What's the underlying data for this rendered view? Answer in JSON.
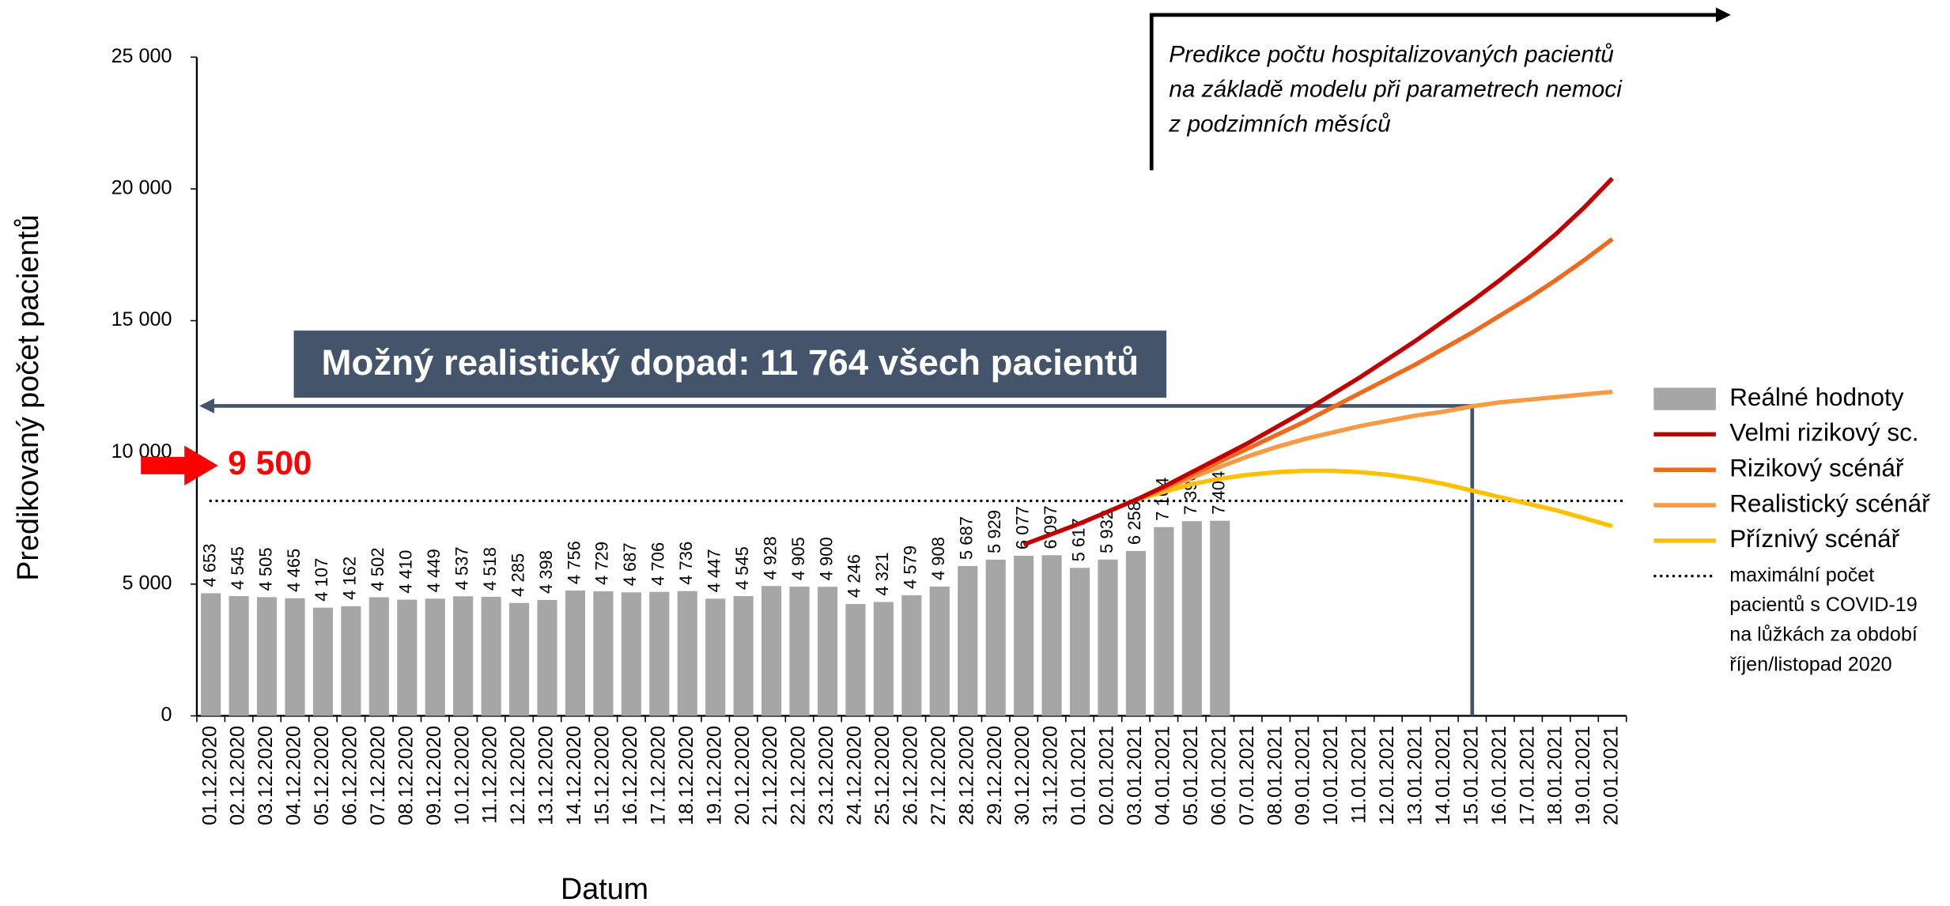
{
  "chart_data": {
    "type": "bar",
    "y_label": "Predikovaný počet pacientů",
    "x_label": "Datum",
    "ylim": [
      0,
      25000
    ],
    "yticks": [
      0,
      {
        "value": 5000,
        "label": "5 000"
      },
      {
        "value": 10000,
        "label": "10 000"
      },
      {
        "value": 15000,
        "label": "15 000"
      },
      {
        "value": 20000,
        "label": "20 000"
      },
      {
        "value": 25000,
        "label": "25 000"
      }
    ],
    "categories": [
      "01.12.2020",
      "02.12.2020",
      "03.12.2020",
      "04.12.2020",
      "05.12.2020",
      "06.12.2020",
      "07.12.2020",
      "08.12.2020",
      "09.12.2020",
      "10.12.2020",
      "11.12.2020",
      "12.12.2020",
      "13.12.2020",
      "14.12.2020",
      "15.12.2020",
      "16.12.2020",
      "17.12.2020",
      "18.12.2020",
      "19.12.2020",
      "20.12.2020",
      "21.12.2020",
      "22.12.2020",
      "23.12.2020",
      "24.12.2020",
      "25.12.2020",
      "26.12.2020",
      "27.12.2020",
      "28.12.2020",
      "29.12.2020",
      "30.12.2020",
      "31.12.2020",
      "01.01.2021",
      "02.01.2021",
      "03.01.2021",
      "04.01.2021",
      "05.01.2021",
      "06.01.2021",
      "07.01.2021",
      "08.01.2021",
      "09.01.2021",
      "10.01.2021",
      "11.01.2021",
      "12.01.2021",
      "13.01.2021",
      "14.01.2021",
      "15.01.2021",
      "16.01.2021",
      "17.01.2021",
      "18.01.2021",
      "19.01.2021",
      "20.01.2021"
    ],
    "series": [
      {
        "name": "Reálné hodnoty",
        "type": "bar",
        "color": "#a6a6a6",
        "values": [
          4653,
          4545,
          4505,
          4465,
          4107,
          4162,
          4502,
          4410,
          4449,
          4537,
          4518,
          4285,
          4398,
          4756,
          4729,
          4687,
          4706,
          4736,
          4447,
          4545,
          4928,
          4905,
          4900,
          4246,
          4321,
          4579,
          4908,
          5687,
          5929,
          6077,
          6097,
          5617,
          5932,
          6258,
          7164,
          7390,
          7404,
          null,
          null,
          null,
          null,
          null,
          null,
          null,
          null,
          null,
          null,
          null,
          null,
          null,
          null
        ],
        "value_labels": [
          "4 653",
          "4 545",
          "4 505",
          "4 465",
          "4 107",
          "4 162",
          "4 502",
          "4 410",
          "4 449",
          "4 537",
          "4 518",
          "4 285",
          "4 398",
          "4 756",
          "4 729",
          "4 687",
          "4 706",
          "4 736",
          "4 447",
          "4 545",
          "4 928",
          "4 905",
          "4 900",
          "4 246",
          "4 321",
          "4 579",
          "4 908",
          "5 687",
          "5 929",
          "6 077",
          "6 097",
          "5 617",
          "5 932",
          "6 258",
          "7 164",
          "7 390",
          "7 404",
          null,
          null,
          null,
          null,
          null,
          null,
          null,
          null,
          null,
          null,
          null,
          null,
          null,
          null
        ]
      },
      {
        "name": "Velmi rizikový sc.",
        "type": "line",
        "color": "#c00000",
        "values": [
          null,
          null,
          null,
          null,
          null,
          null,
          null,
          null,
          null,
          null,
          null,
          null,
          null,
          null,
          null,
          null,
          null,
          null,
          null,
          null,
          null,
          null,
          null,
          null,
          null,
          null,
          null,
          null,
          null,
          6500,
          6900,
          7300,
          7750,
          8200,
          8700,
          9250,
          9800,
          10350,
          10950,
          11550,
          12200,
          12850,
          13550,
          14250,
          15000,
          15750,
          16550,
          17400,
          18300,
          19300,
          20400
        ]
      },
      {
        "name": "Rizikový scénář",
        "type": "line",
        "color": "#ee6a1e",
        "values": [
          null,
          null,
          null,
          null,
          null,
          null,
          null,
          null,
          null,
          null,
          null,
          null,
          null,
          null,
          null,
          null,
          null,
          null,
          null,
          null,
          null,
          null,
          null,
          null,
          null,
          null,
          null,
          null,
          null,
          null,
          null,
          null,
          null,
          8200,
          8650,
          9150,
          9650,
          10150,
          10650,
          11150,
          11700,
          12250,
          12800,
          13350,
          13950,
          14550,
          15200,
          15850,
          16550,
          17300,
          18100
        ]
      },
      {
        "name": "Realistický scénář",
        "type": "line",
        "color": "#f79a46",
        "values": [
          null,
          null,
          null,
          null,
          null,
          null,
          null,
          null,
          null,
          null,
          null,
          null,
          null,
          null,
          null,
          null,
          null,
          null,
          null,
          null,
          null,
          null,
          null,
          null,
          null,
          null,
          null,
          null,
          null,
          null,
          null,
          null,
          null,
          8200,
          8600,
          9050,
          9450,
          9850,
          10200,
          10500,
          10750,
          11000,
          11200,
          11400,
          11550,
          11750,
          11900,
          12000,
          12100,
          12200,
          12300
        ]
      },
      {
        "name": "Příznivý scénář",
        "type": "line",
        "color": "#ffc000",
        "values": [
          null,
          null,
          null,
          null,
          null,
          null,
          null,
          null,
          null,
          null,
          null,
          null,
          null,
          null,
          null,
          null,
          null,
          null,
          null,
          null,
          null,
          null,
          null,
          null,
          null,
          null,
          null,
          null,
          null,
          null,
          null,
          null,
          null,
          8200,
          8500,
          8800,
          9000,
          9150,
          9250,
          9300,
          9300,
          9250,
          9150,
          9000,
          8800,
          8550,
          8300,
          8050,
          7800,
          7500,
          7200
        ]
      }
    ],
    "reference_line": {
      "value": 8160,
      "label_lines": [
        "maximální počet",
        "pacientů s COVID-19",
        "na lůžkách za období",
        "říjen/listopad 2020"
      ]
    },
    "capacity_marker": {
      "value": 9500,
      "label": "9 500"
    },
    "impact": {
      "value": 11764,
      "x": "15.01.2021",
      "label": "Možný realistický dopad: 11 764 všech pacientů"
    },
    "prediction_note": [
      "Predikce počtu hospitalizovaných pacientů",
      "na základě modelu při parametrech nemoci",
      "z podzimních měsíců"
    ]
  }
}
